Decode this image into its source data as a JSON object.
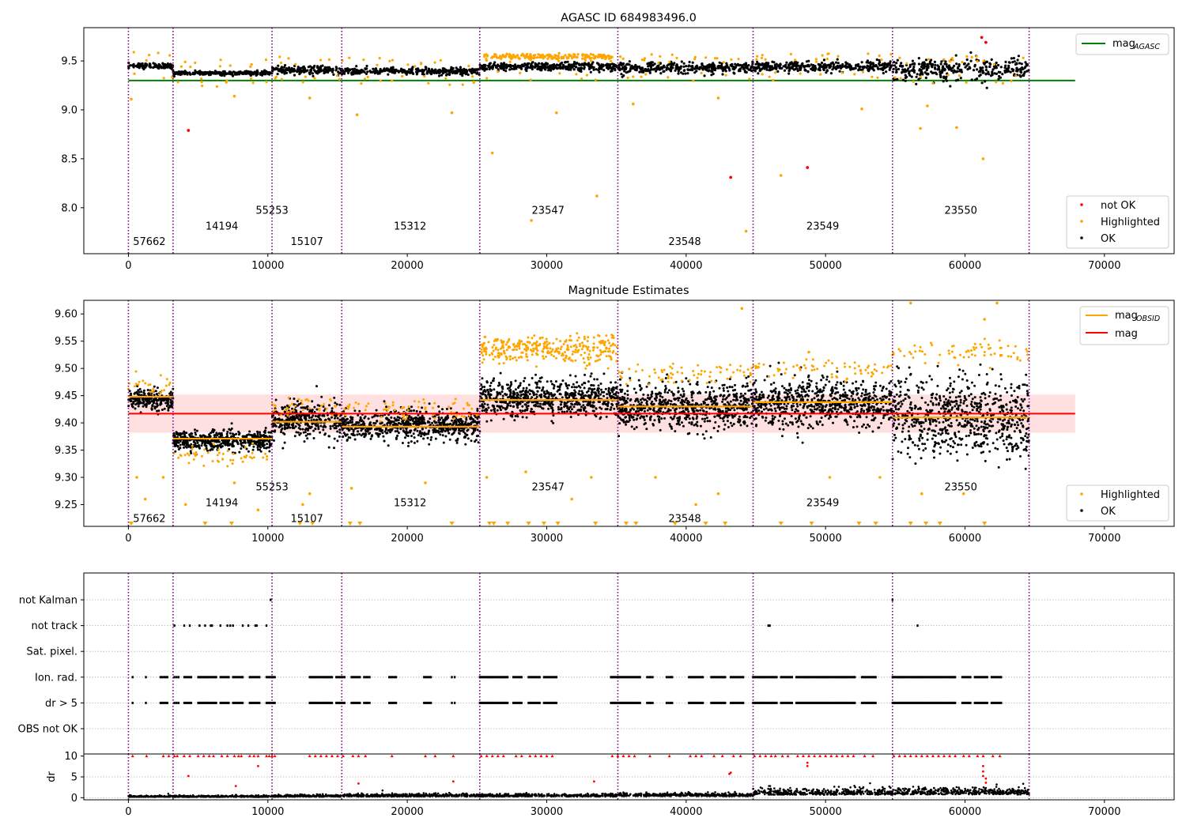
{
  "colors": {
    "ok": "#000000",
    "highlighted": "#ffa500",
    "not_ok": "#ff0000",
    "mag_agasc": "#008000",
    "mag_obsid": "#ffa500",
    "mag": "#ff0000",
    "band": "#ffcccc",
    "obs_boundary": "#800080",
    "grid": "#b0b0b0"
  },
  "chart_data": [
    {
      "type": "scatter",
      "title": "AGASC ID 684983496.0",
      "xlim": [
        -3200,
        75000
      ],
      "ylim": [
        7.53,
        9.84
      ],
      "xticks": [
        0,
        10000,
        20000,
        30000,
        40000,
        50000,
        60000,
        70000
      ],
      "yticks": [
        8.0,
        8.5,
        9.0,
        9.5
      ],
      "obs_boundaries": [
        0,
        3200,
        10300,
        15300,
        25200,
        35100,
        44800,
        54800,
        64600
      ],
      "obs_labels": [
        {
          "obsid": "57662",
          "x": 1500,
          "y": 7.65
        },
        {
          "obsid": "14194",
          "x": 6700,
          "y": 7.81
        },
        {
          "obsid": "55253",
          "x": 10300,
          "y": 7.97
        },
        {
          "obsid": "15107",
          "x": 12800,
          "y": 7.65
        },
        {
          "obsid": "15312",
          "x": 20200,
          "y": 7.81
        },
        {
          "obsid": "23547",
          "x": 30100,
          "y": 7.97
        },
        {
          "obsid": "23548",
          "x": 39900,
          "y": 7.65
        },
        {
          "obsid": "23549",
          "x": 49800,
          "y": 7.81
        },
        {
          "obsid": "23550",
          "x": 59700,
          "y": 7.97
        }
      ],
      "segments": [
        {
          "x0": 0,
          "x1": 3200,
          "ok_level": 9.45,
          "ok_spread": 0.01
        },
        {
          "x0": 3200,
          "x1": 10300,
          "ok_level": 9.375,
          "ok_spread": 0.007
        },
        {
          "x0": 10300,
          "x1": 15300,
          "ok_level": 9.405,
          "ok_spread": 0.015
        },
        {
          "x0": 15300,
          "x1": 25200,
          "ok_level": 9.395,
          "ok_spread": 0.012
        },
        {
          "x0": 25200,
          "x1": 35100,
          "ok_level": 9.44,
          "ok_spread": 0.015
        },
        {
          "x0": 35100,
          "x1": 44800,
          "ok_level": 9.43,
          "ok_spread": 0.02
        },
        {
          "x0": 44800,
          "x1": 54800,
          "ok_level": 9.44,
          "ok_spread": 0.02
        },
        {
          "x0": 54800,
          "x1": 64600,
          "ok_level": 9.41,
          "ok_spread": 0.04
        }
      ],
      "not_ok_points": [
        [
          4300,
          8.79
        ],
        [
          43200,
          8.31
        ],
        [
          48700,
          8.41
        ],
        [
          61200,
          9.74
        ],
        [
          61500,
          9.69
        ]
      ],
      "highlighted_points": [
        [
          200,
          9.11
        ],
        [
          26100,
          8.56
        ],
        [
          28900,
          7.87
        ],
        [
          33600,
          8.12
        ],
        [
          46800,
          8.33
        ],
        [
          44300,
          7.76
        ],
        [
          61300,
          8.5
        ],
        [
          56800,
          8.81
        ],
        [
          16400,
          8.95
        ],
        [
          23200,
          8.97
        ],
        [
          42300,
          9.12
        ],
        [
          52600,
          9.01
        ],
        [
          7600,
          9.14
        ],
        [
          13000,
          9.12
        ],
        [
          30700,
          8.97
        ],
        [
          36200,
          9.06
        ],
        [
          59400,
          8.82
        ],
        [
          57300,
          9.04
        ]
      ],
      "lines": [
        {
          "name": "mag",
          "sub": "AGASC",
          "y": 9.3,
          "x0": 0,
          "x1": 67900
        }
      ],
      "legend_top": {
        "position": "upper right",
        "entries": [
          "mag",
          "AGASC"
        ]
      },
      "legend_bottom": {
        "position": "lower right",
        "entries": [
          "not OK",
          "Highlighted",
          "OK"
        ]
      }
    },
    {
      "type": "scatter",
      "title": "Magnitude Estimates",
      "xlim": [
        -3200,
        75000
      ],
      "ylim": [
        9.21,
        9.625
      ],
      "xticks": [
        0,
        10000,
        20000,
        30000,
        40000,
        50000,
        60000,
        70000
      ],
      "yticks": [
        9.25,
        9.3,
        9.35,
        9.4,
        9.45,
        9.5,
        9.55,
        9.6
      ],
      "obs_boundaries": [
        0,
        3200,
        10300,
        15300,
        25200,
        35100,
        44800,
        54800,
        64600
      ],
      "obs_labels": [
        {
          "obsid": "57662",
          "x": 1500,
          "y": 9.224
        },
        {
          "obsid": "14194",
          "x": 6700,
          "y": 9.253
        },
        {
          "obsid": "55253",
          "x": 10300,
          "y": 9.282
        },
        {
          "obsid": "15107",
          "x": 12800,
          "y": 9.224
        },
        {
          "obsid": "15312",
          "x": 20200,
          "y": 9.253
        },
        {
          "obsid": "23547",
          "x": 30100,
          "y": 9.282
        },
        {
          "obsid": "23548",
          "x": 39900,
          "y": 9.224
        },
        {
          "obsid": "23549",
          "x": 49800,
          "y": 9.253
        },
        {
          "obsid": "23550",
          "x": 59700,
          "y": 9.282
        }
      ],
      "segments": [
        {
          "x0": 0,
          "x1": 3200,
          "ok_level": 9.443,
          "ok_spread": 0.012,
          "mag_obsid": 9.448,
          "hl_level": 9.47
        },
        {
          "x0": 3200,
          "x1": 10300,
          "ok_level": 9.367,
          "ok_spread": 0.012,
          "mag_obsid": 9.371,
          "hl_level": 9.34
        },
        {
          "x0": 10300,
          "x1": 15300,
          "ok_level": 9.405,
          "ok_spread": 0.022,
          "mag_obsid": 9.402,
          "hl_level": 9.43
        },
        {
          "x0": 15300,
          "x1": 25200,
          "ok_level": 9.395,
          "ok_spread": 0.018,
          "mag_obsid": 9.393,
          "hl_level": 9.425
        },
        {
          "x0": 25200,
          "x1": 35100,
          "ok_level": 9.445,
          "ok_spread": 0.022,
          "mag_obsid": 9.442,
          "hl_level": 9.535
        },
        {
          "x0": 35100,
          "x1": 44800,
          "ok_level": 9.43,
          "ok_spread": 0.028,
          "mag_obsid": 9.43,
          "hl_level": 9.49
        },
        {
          "x0": 44800,
          "x1": 54800,
          "ok_level": 9.435,
          "ok_spread": 0.028,
          "mag_obsid": 9.438,
          "hl_level": 9.5
        },
        {
          "x0": 54800,
          "x1": 64600,
          "ok_level": 9.41,
          "ok_spread": 0.045,
          "mag_obsid": 9.41,
          "hl_level": 9.53
        }
      ],
      "highlighted_points": [
        [
          600,
          9.3
        ],
        [
          1200,
          9.26
        ],
        [
          2500,
          9.3
        ],
        [
          4100,
          9.25
        ],
        [
          7600,
          9.29
        ],
        [
          9300,
          9.24
        ],
        [
          12500,
          9.25
        ],
        [
          13000,
          9.27
        ],
        [
          16000,
          9.28
        ],
        [
          21300,
          9.29
        ],
        [
          25700,
          9.3
        ],
        [
          28500,
          9.31
        ],
        [
          31800,
          9.26
        ],
        [
          33200,
          9.3
        ],
        [
          37800,
          9.3
        ],
        [
          40700,
          9.25
        ],
        [
          42300,
          9.27
        ],
        [
          50300,
          9.3
        ],
        [
          53900,
          9.3
        ],
        [
          56900,
          9.27
        ],
        [
          59900,
          9.27
        ],
        [
          61400,
          9.59
        ],
        [
          62300,
          9.62
        ],
        [
          56100,
          9.62
        ],
        [
          44000,
          9.61
        ],
        [
          48800,
          9.53
        ]
      ],
      "clipped_low_x": [
        200,
        5500,
        7400,
        12300,
        13200,
        15900,
        16600,
        23200,
        25900,
        26200,
        27200,
        28700,
        29800,
        30800,
        33500,
        35700,
        36400,
        39200,
        41400,
        42800,
        46800,
        49000,
        52400,
        53600,
        56100,
        57200,
        58200,
        61400
      ],
      "lines": [
        {
          "name": "mag",
          "sub": "OBSID",
          "type": "step"
        },
        {
          "name": "mag",
          "y": 9.417,
          "band": [
            9.382,
            9.452
          ],
          "x0": 0,
          "x1": 67900
        }
      ],
      "legend_top": {
        "position": "upper right",
        "entries": [
          "mag",
          "OBSID",
          "mag"
        ]
      },
      "legend_bottom": {
        "position": "lower right",
        "entries": [
          "Highlighted",
          "OK"
        ]
      }
    },
    {
      "type": "scatter",
      "xlim": [
        -3200,
        75000
      ],
      "flag_rows": [
        "not Kalman",
        "not track",
        "Sat. pixel.",
        "Ion. rad.",
        "dr > 5",
        "OBS not OK"
      ],
      "obs_boundaries": [
        0,
        3200,
        10300,
        15300,
        25200,
        35100,
        44800,
        54800,
        64600
      ],
      "flag_points": {
        "not Kalman": [
          10200,
          54800
        ],
        "not track": [
          3300,
          4000,
          4400,
          5100,
          5500,
          5900,
          6000,
          6600,
          7100,
          7300,
          7500,
          8200,
          8600,
          9100,
          9200,
          9900,
          45900,
          46000,
          56600
        ],
        "Sat. pixel.": [],
        "Ion. rad.": "dense",
        "dr > 5": "dense",
        "OBS not OK": []
      }
    },
    {
      "type": "scatter",
      "ylabel": "dr",
      "xlim": [
        -3200,
        75000
      ],
      "ylim": [
        -0.5,
        10.5
      ],
      "yticks": [
        0,
        5,
        10
      ],
      "xticks": [
        0,
        10000,
        20000,
        30000,
        40000,
        50000,
        60000,
        70000
      ],
      "obs_boundaries": [
        0,
        3200,
        10300,
        15300,
        25200,
        35100,
        44800,
        54800,
        64600
      ],
      "segments": [
        {
          "x0": 0,
          "x1": 3200,
          "dr_level": 0.3
        },
        {
          "x0": 3200,
          "x1": 10300,
          "dr_level": 0.3
        },
        {
          "x0": 10300,
          "x1": 15300,
          "dr_level": 0.4
        },
        {
          "x0": 15300,
          "x1": 25200,
          "dr_level": 0.5
        },
        {
          "x0": 25200,
          "x1": 35100,
          "dr_level": 0.5
        },
        {
          "x0": 35100,
          "x1": 44800,
          "dr_level": 0.6
        },
        {
          "x0": 44800,
          "x1": 54800,
          "dr_level": 1.2
        },
        {
          "x0": 54800,
          "x1": 64600,
          "dr_level": 1.3
        }
      ],
      "capped_value": 10,
      "red_points": [
        [
          4300,
          5.2
        ],
        [
          7700,
          2.8
        ],
        [
          9300,
          7.6
        ],
        [
          16500,
          3.4
        ],
        [
          23300,
          3.9
        ],
        [
          33400,
          3.9
        ],
        [
          43100,
          5.7
        ],
        [
          43200,
          6
        ],
        [
          48700,
          8.4
        ],
        [
          48700,
          7.6
        ],
        [
          61300,
          7.6
        ],
        [
          61300,
          6.3
        ],
        [
          61300,
          5.2
        ],
        [
          61500,
          4.6
        ],
        [
          61500,
          3.6
        ]
      ]
    }
  ]
}
